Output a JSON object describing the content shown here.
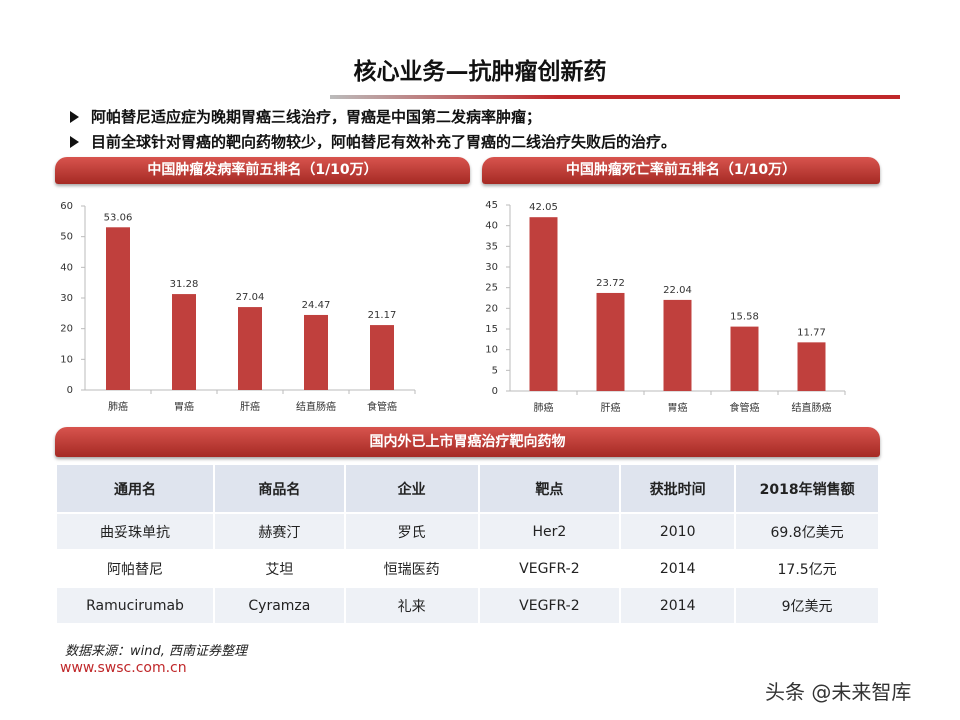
{
  "header": {
    "title": "核心业务—抗肿瘤创新药"
  },
  "bullets": [
    "阿帕替尼适应症为晚期胃癌三线治疗，胃癌是中国第二发病率肿瘤；",
    "目前全球针对胃癌的靶向药物较少，阿帕替尼有效补充了胃癌的二线治疗失败后的治疗。"
  ],
  "chart_data": [
    {
      "type": "bar",
      "title": "中国肿瘤发病率前五排名（1/10万）",
      "categories": [
        "肺癌",
        "胃癌",
        "肝癌",
        "结直肠癌",
        "食管癌"
      ],
      "values": [
        53.06,
        31.28,
        27.04,
        24.47,
        21.17
      ],
      "color": "#c0403d",
      "ylim": [
        0,
        60
      ],
      "yticks": [
        0,
        10,
        20,
        30,
        40,
        50,
        60
      ]
    },
    {
      "type": "bar",
      "title": "中国肿瘤死亡率前五排名（1/10万）",
      "categories": [
        "肺癌",
        "肝癌",
        "胃癌",
        "食管癌",
        "结直肠癌"
      ],
      "values": [
        42.05,
        23.72,
        22.04,
        15.58,
        11.77
      ],
      "color": "#c0403d",
      "ylim": [
        0,
        45
      ],
      "yticks": [
        0,
        5,
        10,
        15,
        20,
        25,
        30,
        35,
        40,
        45
      ]
    }
  ],
  "table": {
    "title": "国内外已上市胃癌治疗靶向药物",
    "header": [
      "通用名",
      "商品名",
      "企业",
      "靶点",
      "获批时间",
      "2018年销售额"
    ],
    "rows": [
      [
        "曲妥珠单抗",
        "赫赛汀",
        "罗氏",
        "Her2",
        "2010",
        "69.8亿美元"
      ],
      [
        "阿帕替尼",
        "艾坦",
        "恒瑞医药",
        "VEGFR-2",
        "2014",
        "17.5亿元"
      ],
      [
        "Ramucirumab",
        "Cyramza",
        "礼来",
        "VEGFR-2",
        "2014",
        "9亿美元"
      ]
    ]
  },
  "source": "数据来源：wind, 西南证券整理",
  "footer": {
    "url": "www.swsc.com.cn",
    "watermark": "头条 @未来智库"
  }
}
